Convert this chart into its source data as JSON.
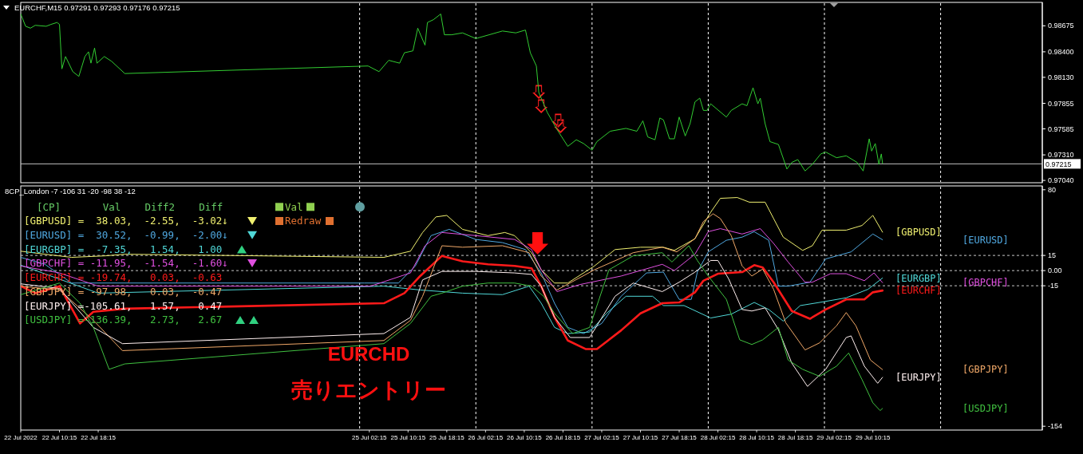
{
  "chart_data": [
    {
      "type": "line",
      "title": "EURCHF,M15  0.97291 0.97293 0.97176 0.97215",
      "xlim": [
        "2022-07-22T02:15",
        "2022-07-30T21:15"
      ],
      "ylim": [
        0.97024,
        0.98914
      ],
      "tick_labels": "y",
      "yticks": [
        {
          "value": 0.98675,
          "label": "0.98675"
        },
        {
          "value": 0.984,
          "label": "0.98400"
        },
        {
          "value": 0.9813,
          "label": "0.98130"
        },
        {
          "value": 0.97855,
          "label": "0.97855"
        },
        {
          "value": 0.97585,
          "label": "0.97585"
        },
        {
          "value": 0.9731,
          "label": "0.97310"
        },
        {
          "value": 0.9704,
          "label": "0.97040"
        }
      ],
      "ref_lines": [
        {
          "axis": "x",
          "value": "2022-07-25T00:15",
          "color": "#ffffff",
          "line_style": "dashed"
        },
        {
          "axis": "x",
          "value": "2022-07-26T00:15",
          "color": "#ffffff",
          "line_style": "dashed"
        },
        {
          "axis": "x",
          "value": "2022-07-27T00:15",
          "color": "#ffffff",
          "line_style": "dashed"
        },
        {
          "axis": "x",
          "value": "2022-07-28T00:15",
          "color": "#ffffff",
          "line_style": "dashed"
        },
        {
          "axis": "x",
          "value": "2022-07-29T00:15",
          "color": "#ffffff",
          "line_style": "dashed"
        },
        {
          "axis": "x",
          "value": "2022-07-30T00:15",
          "color": "#ffffff",
          "line_style": "dashed"
        },
        {
          "axis": "y",
          "value": 0.97215,
          "label": "0.97215",
          "color": "#c0c0c0",
          "line_style": "solid"
        }
      ],
      "series": [
        {
          "color": "#32cd32",
          "x": [
            "2022-07-22T02:15",
            "2022-07-22T03:15",
            "2022-07-22T04:15",
            "2022-07-22T05:15",
            "2022-07-22T07:30",
            "2022-07-22T08:30",
            "2022-07-22T09:45",
            "2022-07-22T10:15",
            "2022-07-22T10:45",
            "2022-07-22T11:30",
            "2022-07-22T13:00",
            "2022-07-22T14:15",
            "2022-07-22T15:30",
            "2022-07-22T16:15",
            "2022-07-22T16:45",
            "2022-07-22T17:30",
            "2022-07-22T18:00",
            "2022-07-22T19:30",
            "2022-07-22T21:00",
            "2022-07-22T23:45",
            "2022-07-25T02:00",
            "2022-07-25T04:15",
            "2022-07-25T06:15",
            "2022-07-25T08:30",
            "2022-07-25T09:30",
            "2022-07-25T11:15",
            "2022-07-25T12:15",
            "2022-07-25T13:45",
            "2022-07-25T14:15",
            "2022-07-25T15:30",
            "2022-07-25T17:00",
            "2022-07-25T17:45",
            "2022-07-25T19:15",
            "2022-07-25T21:30",
            "2022-07-26T00:15",
            "2022-07-26T03:00",
            "2022-07-26T05:45",
            "2022-07-26T08:30",
            "2022-07-26T10:30",
            "2022-07-26T11:30",
            "2022-07-26T12:45",
            "2022-07-26T13:15",
            "2022-07-26T15:00",
            "2022-07-26T17:00",
            "2022-07-26T19:15",
            "2022-07-26T21:00",
            "2022-07-26T22:30",
            "2022-07-27T00:15",
            "2022-07-27T01:15",
            "2022-07-27T04:00",
            "2022-07-27T07:15",
            "2022-07-27T09:30",
            "2022-07-27T10:45",
            "2022-07-27T11:45",
            "2022-07-27T13:15",
            "2022-07-27T14:15",
            "2022-07-27T15:00",
            "2022-07-27T16:15",
            "2022-07-27T17:15",
            "2022-07-27T18:15",
            "2022-07-27T19:30",
            "2022-07-27T20:30",
            "2022-07-27T21:30",
            "2022-07-27T22:30",
            "2022-07-27T23:15",
            "2022-07-28T00:00",
            "2022-07-28T00:45",
            "2022-07-28T04:00",
            "2022-07-28T05:00",
            "2022-07-28T07:15",
            "2022-07-28T08:15",
            "2022-07-28T09:30",
            "2022-07-28T10:30",
            "2022-07-28T11:00",
            "2022-07-28T12:00",
            "2022-07-28T13:00",
            "2022-07-28T14:45",
            "2022-07-28T16:30",
            "2022-07-28T17:30",
            "2022-07-28T18:45",
            "2022-07-28T20:15",
            "2022-07-28T21:45",
            "2022-07-28T23:30",
            "2022-07-29T00:30",
            "2022-07-29T02:45",
            "2022-07-29T04:45",
            "2022-07-29T07:00",
            "2022-07-29T08:15",
            "2022-07-29T09:30",
            "2022-07-29T10:00",
            "2022-07-29T10:45",
            "2022-07-29T11:30",
            "2022-07-29T12:00",
            "2022-07-29T12:15"
          ],
          "values": [
            0.988,
            0.9867,
            0.9865,
            0.9868,
            0.9867,
            0.9869,
            0.9871,
            0.9869,
            0.9822,
            0.9835,
            0.9819,
            0.9814,
            0.9835,
            0.984,
            0.9828,
            0.9844,
            0.9828,
            0.9835,
            0.983,
            0.9817,
            0.9825,
            0.9819,
            0.9831,
            0.9828,
            0.9839,
            0.9841,
            0.9865,
            0.9847,
            0.9871,
            0.9874,
            0.988,
            0.9858,
            0.9858,
            0.986,
            0.9854,
            0.9858,
            0.9862,
            0.986,
            0.9863,
            0.9839,
            0.9825,
            0.9797,
            0.9776,
            0.9758,
            0.974,
            0.9747,
            0.9743,
            0.9736,
            0.9745,
            0.9756,
            0.9759,
            0.9756,
            0.9767,
            0.975,
            0.9747,
            0.977,
            0.9768,
            0.9748,
            0.9748,
            0.9771,
            0.9751,
            0.9764,
            0.9787,
            0.9791,
            0.9778,
            0.9778,
            0.9785,
            0.9771,
            0.9778,
            0.9785,
            0.9783,
            0.9802,
            0.9785,
            0.9791,
            0.9764,
            0.9745,
            0.9742,
            0.9716,
            0.9723,
            0.9726,
            0.9714,
            0.9721,
            0.9732,
            0.9734,
            0.9728,
            0.973,
            0.9723,
            0.9714,
            0.9748,
            0.9735,
            0.9743,
            0.9721,
            0.9732,
            0.9722
          ]
        }
      ]
    },
    {
      "type": "line",
      "title": "8CP_London -7 -106 31 -20 -98 38 -12",
      "xlim": [
        "2022-07-22T02:15",
        "2022-07-30T21:15"
      ],
      "ylim": [
        -157,
        83
      ],
      "xticks": [
        {
          "value": "2022-07-22T02:15",
          "label": "22 Jul 2022"
        },
        {
          "value": "2022-07-22T10:15",
          "label": "22 Jul 10:15"
        },
        {
          "value": "2022-07-22T18:15",
          "label": "22 Jul 18:15"
        },
        {
          "value": "2022-07-25T02:15",
          "label": "25 Jul 02:15"
        },
        {
          "value": "2022-07-25T10:15",
          "label": "25 Jul 10:15"
        },
        {
          "value": "2022-07-25T18:15",
          "label": "25 Jul 18:15"
        },
        {
          "value": "2022-07-26T02:15",
          "label": "26 Jul 02:15"
        },
        {
          "value": "2022-07-26T10:15",
          "label": "26 Jul 10:15"
        },
        {
          "value": "2022-07-26T18:15",
          "label": "26 Jul 18:15"
        },
        {
          "value": "2022-07-27T02:15",
          "label": "27 Jul 02:15"
        },
        {
          "value": "2022-07-27T10:15",
          "label": "27 Jul 10:15"
        },
        {
          "value": "2022-07-27T18:15",
          "label": "27 Jul 18:15"
        },
        {
          "value": "2022-07-28T02:15",
          "label": "28 Jul 02:15"
        },
        {
          "value": "2022-07-28T10:15",
          "label": "28 Jul 10:15"
        },
        {
          "value": "2022-07-28T18:15",
          "label": "28 Jul 18:15"
        },
        {
          "value": "2022-07-29T02:15",
          "label": "29 Jul 02:15"
        },
        {
          "value": "2022-07-29T10:15",
          "label": "29 Jul 10:15"
        }
      ],
      "yticks": [
        80,
        15,
        {
          "value": 0,
          "label": "0.00"
        },
        -15,
        -154
      ],
      "ref_lines": [
        {
          "axis": "x",
          "value": "2022-07-25T00:15",
          "color": "#ffffff",
          "line_style": "dashed"
        },
        {
          "axis": "x",
          "value": "2022-07-26T00:15",
          "color": "#ffffff",
          "line_style": "dashed"
        },
        {
          "axis": "x",
          "value": "2022-07-27T00:15",
          "color": "#ffffff",
          "line_style": "dashed"
        },
        {
          "axis": "x",
          "value": "2022-07-28T00:15",
          "color": "#ffffff",
          "line_style": "dashed"
        },
        {
          "axis": "x",
          "value": "2022-07-29T00:15",
          "color": "#ffffff",
          "line_style": "dashed"
        },
        {
          "axis": "x",
          "value": "2022-07-30T00:15",
          "color": "#ffffff",
          "line_style": "dashed"
        },
        {
          "axis": "y",
          "value": 15,
          "color": "#c8c8c8",
          "line_style": "dashed"
        },
        {
          "axis": "y",
          "value": 0,
          "color": "#c8c8c8",
          "line_style": "dashed"
        },
        {
          "axis": "y",
          "value": -15,
          "color": "#c8c8c8",
          "line_style": "dashed"
        }
      ],
      "annotations": [
        "[CP]       Val    Diff2    Diff",
        "[GBPUSD] =  38.03,  -2.55,  -3.02↓",
        "[EURUSD] =  30.52,  -0.99,  -2.00↓",
        "[EURGBP] =  -7.35,   1.54,   1.00",
        "[GBPCHF] = -11.95,  -1.54,  -1.60↓",
        "[EURCHF] = -19.74,   0.03,  -0.63",
        "[GBPJPY] = -97.98,   0.03,  -0.47",
        "[EURJPY] =-105.61,   1.57,   0.47",
        "[USDJPY] =-136.39,   2.73,   2.67",
        "Val",
        "Redraw",
        "EURCHD",
        "売りエントリー"
      ],
      "series": [
        {
          "name": "[GBPUSD]",
          "color": "#f0f070",
          "x": [
            "2022-07-22T02:15",
            "2022-07-22T07:15",
            "2022-07-22T12:45",
            "2022-07-22T19:45",
            "2022-07-22T23:45",
            "2022-07-25T05:15",
            "2022-07-25T10:45",
            "2022-07-25T13:15",
            "2022-07-25T16:00",
            "2022-07-25T18:15",
            "2022-07-25T21:30",
            "2022-07-26T02:45",
            "2022-07-26T06:15",
            "2022-07-26T08:15",
            "2022-07-26T11:45",
            "2022-07-26T13:45",
            "2022-07-26T16:30",
            "2022-07-26T19:15",
            "2022-07-27T00:45",
            "2022-07-27T05:00",
            "2022-07-27T10:15",
            "2022-07-27T15:00",
            "2022-07-27T17:15",
            "2022-07-27T21:30",
            "2022-07-28T00:45",
            "2022-07-28T02:45",
            "2022-07-28T06:15",
            "2022-07-28T08:45",
            "2022-07-28T12:00",
            "2022-07-28T13:45",
            "2022-07-28T15:45",
            "2022-07-28T19:45",
            "2022-07-28T21:45",
            "2022-07-28T23:45",
            "2022-07-29T04:45",
            "2022-07-29T08:00",
            "2022-07-29T10:15",
            "2022-07-29T12:15"
          ],
          "values": [
            19.2,
            16.2,
            13.1,
            14.6,
            16.2,
            13.1,
            19.2,
            37.7,
            53.1,
            54.6,
            40.8,
            34.6,
            37.7,
            34.6,
            17.7,
            0.8,
            -12.3,
            -12.3,
            4.6,
            20.8,
            23.1,
            23.1,
            20,
            31.5,
            57.7,
            71.5,
            72.3,
            67.7,
            67.7,
            51.5,
            33.1,
            20,
            24.6,
            40,
            40,
            44.6,
            54.6,
            38.03
          ]
        },
        {
          "name": "[EURUSD]",
          "color": "#50a8e0",
          "x": [
            "2022-07-22T02:15",
            "2022-07-22T07:15",
            "2022-07-22T12:45",
            "2022-07-25T01:15",
            "2022-07-25T08:15",
            "2022-07-25T11:45",
            "2022-07-25T15:00",
            "2022-07-25T18:45",
            "2022-07-26T00:15",
            "2022-07-26T05:45",
            "2022-07-26T10:30",
            "2022-07-26T13:45",
            "2022-07-26T16:30",
            "2022-07-26T19:15",
            "2022-07-26T22:30",
            "2022-07-27T02:15",
            "2022-07-27T06:15",
            "2022-07-27T11:30",
            "2022-07-27T15:00",
            "2022-07-27T18:15",
            "2022-07-27T20:45",
            "2022-07-27T22:00",
            "2022-07-28T00:15",
            "2022-07-28T04:00",
            "2022-07-28T07:15",
            "2022-07-28T09:45",
            "2022-07-28T12:45",
            "2022-07-28T14:45",
            "2022-07-28T16:45",
            "2022-07-28T21:15",
            "2022-07-29T00:30",
            "2022-07-29T05:45",
            "2022-07-29T10:15",
            "2022-07-29T12:15"
          ],
          "values": [
            13.1,
            6.2,
            -12.3,
            -12.3,
            -12.3,
            4.6,
            34.6,
            40.8,
            30.8,
            27.7,
            20.8,
            -2.3,
            -32.3,
            -56.2,
            -62.3,
            -52.3,
            -25.4,
            -2.3,
            -1.5,
            -28.5,
            -28.5,
            -1.5,
            18.5,
            30,
            33.1,
            38.5,
            30,
            -15.4,
            -15.4,
            -11.5,
            11.5,
            18.5,
            36.2,
            30.52
          ]
        },
        {
          "name": "[EURGBP]",
          "color": "#50d8d8",
          "x": [
            "2022-07-22T02:15",
            "2022-07-22T18:15",
            "2022-07-25T05:15",
            "2022-07-25T12:45",
            "2022-07-25T21:30",
            "2022-07-26T05:45",
            "2022-07-26T11:15",
            "2022-07-26T13:45",
            "2022-07-26T16:30",
            "2022-07-26T19:15",
            "2022-07-26T23:45",
            "2022-07-27T03:15",
            "2022-07-27T07:15",
            "2022-07-27T12:45",
            "2022-07-27T15:00",
            "2022-07-27T19:15",
            "2022-07-28T00:45",
            "2022-07-28T05:00",
            "2022-07-28T09:45",
            "2022-07-28T12:45",
            "2022-07-28T15:45",
            "2022-07-28T19:15",
            "2022-07-28T23:15",
            "2022-07-29T04:45",
            "2022-07-29T09:15",
            "2022-07-29T12:15"
          ],
          "values": [
            5.4,
            -22.3,
            -15.4,
            -19.2,
            -22.3,
            -23.8,
            -15.4,
            -32.3,
            -56.2,
            -62.3,
            -60.8,
            -42.3,
            -25.4,
            -25.4,
            -34.6,
            -34.6,
            -46.9,
            -43.1,
            -31.5,
            -38.5,
            -50,
            -34.6,
            -31.5,
            -26.9,
            -18.5,
            -7.35
          ]
        },
        {
          "name": "[GBPCHF]",
          "color": "#e050e0",
          "x": [
            "2022-07-22T02:15",
            "2022-07-22T10:15",
            "2022-07-22T18:15",
            "2022-07-25T02:30",
            "2022-07-25T10:45",
            "2022-07-25T13:45",
            "2022-07-25T17:15",
            "2022-07-26T00:15",
            "2022-07-26T08:15",
            "2022-07-26T11:45",
            "2022-07-26T13:45",
            "2022-07-26T17:00",
            "2022-07-26T21:45",
            "2022-07-27T06:15",
            "2022-07-27T14:45",
            "2022-07-27T17:15",
            "2022-07-27T21:30",
            "2022-07-28T00:15",
            "2022-07-28T02:45",
            "2022-07-28T07:15",
            "2022-07-28T11:00",
            "2022-07-28T13:45",
            "2022-07-28T16:45",
            "2022-07-28T20:15",
            "2022-07-28T21:45",
            "2022-07-29T01:30",
            "2022-07-29T04:45",
            "2022-07-29T08:30",
            "2022-07-29T10:30",
            "2022-07-29T12:15"
          ],
          "values": [
            4.6,
            -2.3,
            -15.4,
            -15.4,
            -2.3,
            24.6,
            37.7,
            34.6,
            30.8,
            20.8,
            0.8,
            -20.8,
            -13.8,
            -5.4,
            6.2,
            0,
            16.2,
            38.5,
            41.5,
            36.2,
            41.5,
            26.9,
            8.5,
            -11.5,
            -11.5,
            -3.1,
            -3.1,
            -10,
            -2.3,
            -11.95
          ]
        },
        {
          "name": "[EURCHF]",
          "color": "#ff1a1a",
          "x": [
            "2022-07-22T02:15",
            "2022-07-22T05:15",
            "2022-07-22T10:15",
            "2022-07-22T14:30",
            "2022-07-22T17:15",
            "2022-07-22T23:45",
            "2022-07-25T05:15",
            "2022-07-25T09:30",
            "2022-07-25T12:45",
            "2022-07-25T17:15",
            "2022-07-25T21:30",
            "2022-07-26T02:45",
            "2022-07-26T08:15",
            "2022-07-26T11:45",
            "2022-07-26T13:45",
            "2022-07-26T16:30",
            "2022-07-26T19:15",
            "2022-07-26T23:00",
            "2022-07-27T01:15",
            "2022-07-27T06:15",
            "2022-07-27T10:15",
            "2022-07-27T14:45",
            "2022-07-27T18:15",
            "2022-07-27T21:30",
            "2022-07-27T23:15",
            "2022-07-28T02:15",
            "2022-07-28T07:15",
            "2022-07-28T09:45",
            "2022-07-28T11:30",
            "2022-07-28T13:45",
            "2022-07-28T17:30",
            "2022-07-28T21:15",
            "2022-07-29T00:30",
            "2022-07-29T04:45",
            "2022-07-29T08:30",
            "2022-07-29T10:15",
            "2022-07-29T12:15"
          ],
          "values": [
            -15.4,
            -22.3,
            -15.4,
            -52.3,
            -40.8,
            -37.7,
            -32.3,
            -22.3,
            -5.4,
            14.6,
            9.2,
            6.2,
            4.6,
            2.3,
            -15.4,
            -46.2,
            -69.2,
            -77.7,
            -77.7,
            -59.2,
            -42.3,
            -32.3,
            -31.5,
            -21.5,
            -10,
            -3.1,
            -1.5,
            5.4,
            3.1,
            -11.5,
            -40,
            -47.7,
            -38.5,
            -28.5,
            -28.5,
            -21.5,
            -19.74
          ]
        },
        {
          "name": "[GBPJPY]",
          "color": "#f0a868",
          "x": [
            "2022-07-22T02:15",
            "2022-07-22T10:15",
            "2022-07-22T17:15",
            "2022-07-22T23:15",
            "2022-07-25T05:15",
            "2022-07-25T10:45",
            "2022-07-25T13:15",
            "2022-07-25T17:15",
            "2022-07-25T21:30",
            "2022-07-26T05:45",
            "2022-07-26T11:15",
            "2022-07-26T13:45",
            "2022-07-26T17:00",
            "2022-07-27T00:45",
            "2022-07-27T08:45",
            "2022-07-27T14:45",
            "2022-07-27T17:45",
            "2022-07-27T21:30",
            "2022-07-27T23:15",
            "2022-07-28T01:15",
            "2022-07-28T02:45",
            "2022-07-28T05:00",
            "2022-07-28T07:15",
            "2022-07-28T09:15",
            "2022-07-28T11:30",
            "2022-07-28T13:45",
            "2022-07-28T16:15",
            "2022-07-28T20:15",
            "2022-07-28T23:15",
            "2022-07-29T02:45",
            "2022-07-29T04:45",
            "2022-07-29T06:45",
            "2022-07-29T09:45",
            "2022-07-29T12:15"
          ],
          "values": [
            -15.4,
            -19.2,
            -49.2,
            -79.2,
            -69.2,
            -49.2,
            -25.4,
            24.6,
            23.1,
            24.6,
            17.7,
            -5.4,
            -19.2,
            0.8,
            17.7,
            23.1,
            18.5,
            31.5,
            48.5,
            56.2,
            51.5,
            34.6,
            4.6,
            -5.4,
            1.5,
            -18.5,
            -51.5,
            -78.5,
            -71.5,
            -54.6,
            -41.5,
            -54.6,
            -88.5,
            -97.98
          ]
        },
        {
          "name": "[EURJPY]",
          "color": "#fff0f0",
          "x": [
            "2022-07-22T02:15",
            "2022-07-22T10:15",
            "2022-07-22T17:15",
            "2022-07-22T23:15",
            "2022-07-25T05:15",
            "2022-07-25T10:45",
            "2022-07-25T13:15",
            "2022-07-25T17:15",
            "2022-07-26T00:15",
            "2022-07-26T08:15",
            "2022-07-26T11:45",
            "2022-07-26T13:45",
            "2022-07-26T16:30",
            "2022-07-26T19:45",
            "2022-07-26T23:45",
            "2022-07-27T05:00",
            "2022-07-27T08:45",
            "2022-07-27T14:45",
            "2022-07-27T18:15",
            "2022-07-27T21:30",
            "2022-07-28T00:45",
            "2022-07-28T02:15",
            "2022-07-28T04:30",
            "2022-07-28T07:15",
            "2022-07-28T09:15",
            "2022-07-28T12:00",
            "2022-07-28T14:45",
            "2022-07-28T17:30",
            "2022-07-28T20:45",
            "2022-07-29T00:30",
            "2022-07-29T04:45",
            "2022-07-29T05:45",
            "2022-07-29T08:30",
            "2022-07-29T11:15",
            "2022-07-29T12:15"
          ],
          "values": [
            -13.1,
            -17.7,
            -56.2,
            -72.3,
            -62.3,
            -46.2,
            -9.2,
            -0.8,
            -0.8,
            -2.3,
            -3.8,
            -15.4,
            -46.2,
            -66.2,
            -66.2,
            -25.4,
            -12.3,
            -20.8,
            -11.5,
            -1.5,
            10,
            10,
            -8.5,
            -38.5,
            -40,
            -36.9,
            -58.5,
            -91.5,
            -114.6,
            -97.7,
            -66.2,
            -64.6,
            -94.6,
            -111.5,
            -105.61
          ]
        },
        {
          "name": "[USDJPY]",
          "color": "#40c040",
          "x": [
            "2022-07-22T02:15",
            "2022-07-22T10:15",
            "2022-07-22T14:30",
            "2022-07-22T17:15",
            "2022-07-22T20:30",
            "2022-07-22T23:45",
            "2022-07-25T05:15",
            "2022-07-25T10:45",
            "2022-07-25T15:00",
            "2022-07-25T17:15",
            "2022-07-25T21:30",
            "2022-07-26T02:45",
            "2022-07-26T08:15",
            "2022-07-26T11:45",
            "2022-07-26T14:15",
            "2022-07-26T16:30",
            "2022-07-26T20:15",
            "2022-07-26T23:45",
            "2022-07-27T03:45",
            "2022-07-27T08:45",
            "2022-07-27T14:45",
            "2022-07-27T16:45",
            "2022-07-27T20:15",
            "2022-07-27T22:00",
            "2022-07-28T00:15",
            "2022-07-28T04:00",
            "2022-07-28T06:45",
            "2022-07-28T09:15",
            "2022-07-28T11:30",
            "2022-07-28T14:45",
            "2022-07-28T16:45",
            "2022-07-28T19:45",
            "2022-07-28T23:15",
            "2022-07-29T02:45",
            "2022-07-29T05:15",
            "2022-07-29T08:00",
            "2022-07-29T10:15",
            "2022-07-29T11:45",
            "2022-07-29T12:15"
          ],
          "values": [
            -23.8,
            -12.3,
            -32.3,
            -56.2,
            -97.7,
            -92.3,
            -72.3,
            -52.3,
            -25.4,
            -22.3,
            -15.4,
            -12.3,
            -12.3,
            -15.4,
            -25.4,
            -42.3,
            -62.3,
            -56.2,
            0.8,
            14.6,
            17.7,
            8.5,
            24.6,
            10,
            -5.4,
            -28.5,
            -68.5,
            -73.1,
            -68.5,
            -56.2,
            -88.5,
            -97.7,
            -104.6,
            -94.6,
            -81.5,
            -107.7,
            -130.8,
            -138.5,
            -136.39
          ]
        }
      ]
    }
  ]
}
